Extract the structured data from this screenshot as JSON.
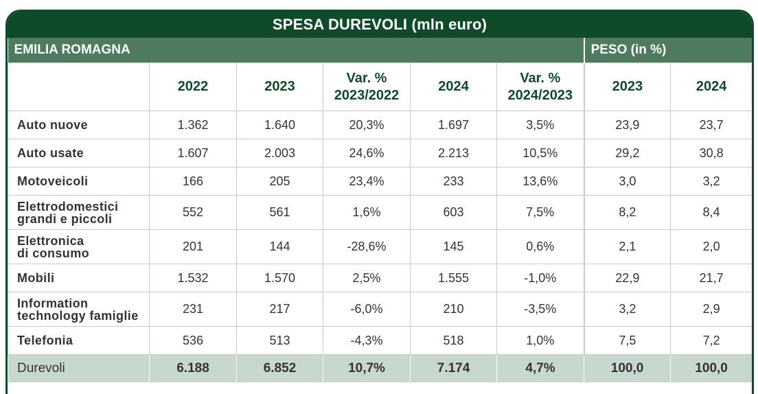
{
  "title": "SPESA DUREVOLI (mln euro)",
  "region": "EMILIA ROMAGNA",
  "peso_header": "PESO (in %)",
  "columns": [
    "",
    "2022",
    "2023",
    "Var. %\n2023/2022",
    "2024",
    "Var. %\n2024/2023",
    "2023",
    "2024"
  ],
  "rows": [
    {
      "label": "Auto nuove",
      "cells": [
        "1.362",
        "1.640",
        "20,3%",
        "1.697",
        "3,5%",
        "23,9",
        "23,7"
      ]
    },
    {
      "label": "Auto usate",
      "cells": [
        "1.607",
        "2.003",
        "24,6%",
        "2.213",
        "10,5%",
        "29,2",
        "30,8"
      ]
    },
    {
      "label": "Motoveicoli",
      "cells": [
        "166",
        "205",
        "23,4%",
        "233",
        "13,6%",
        "3,0",
        "3,2"
      ]
    },
    {
      "label": "Elettrodomestici\ngrandi e piccoli",
      "cells": [
        "552",
        "561",
        "1,6%",
        "603",
        "7,5%",
        "8,2",
        "8,4"
      ]
    },
    {
      "label": "Elettronica\ndi consumo",
      "cells": [
        "201",
        "144",
        "-28,6%",
        "145",
        "0,6%",
        "2,1",
        "2,0"
      ]
    },
    {
      "label": "Mobili",
      "cells": [
        "1.532",
        "1.570",
        "2,5%",
        "1.555",
        "-1,0%",
        "22,9",
        "21,7"
      ]
    },
    {
      "label": "Information\ntechnology famiglie",
      "cells": [
        "231",
        "217",
        "-6,0%",
        "210",
        "-3,5%",
        "3,2",
        "2,9"
      ]
    },
    {
      "label": "Telefonia",
      "cells": [
        "536",
        "513",
        "-4,3%",
        "518",
        "1,0%",
        "7,5",
        "7,2"
      ]
    }
  ],
  "total": {
    "label": "Durevoli",
    "cells": [
      "6.188",
      "6.852",
      "10,7%",
      "7.174",
      "4,7%",
      "100,0",
      "100,0"
    ]
  }
}
